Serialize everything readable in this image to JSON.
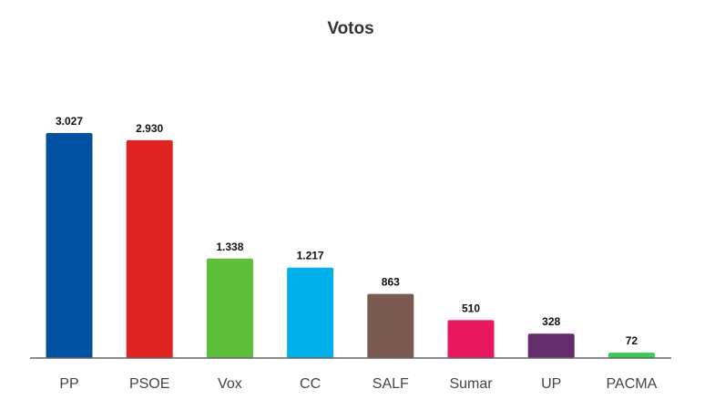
{
  "chart_data": {
    "type": "bar",
    "title": "Votos",
    "xlabel": "",
    "ylabel": "",
    "categories": [
      "PP",
      "PSOE",
      "Vox",
      "CC",
      "SALF",
      "Sumar",
      "UP",
      "PACMA"
    ],
    "values": [
      3027,
      2930,
      1338,
      1217,
      863,
      510,
      328,
      72
    ],
    "value_labels": [
      "3.027",
      "2.930",
      "1.338",
      "1.217",
      "863",
      "510",
      "328",
      "72"
    ],
    "colors": [
      "#0052a0",
      "#e02424",
      "#5cbf37",
      "#00b0ea",
      "#7b5a4f",
      "#e8175d",
      "#642c6b",
      "#33cc55"
    ],
    "ylim": [
      0,
      3027
    ],
    "grid": false,
    "legend": "none"
  }
}
